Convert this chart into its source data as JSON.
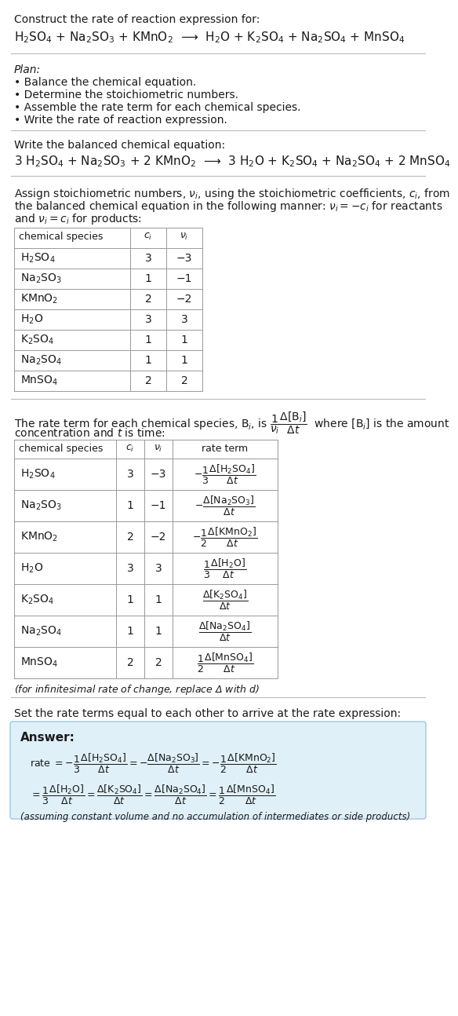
{
  "bg_color": "#ffffff",
  "text_color": "#1a1a1a",
  "title_line1": "Construct the rate of reaction expression for:",
  "reaction_unbalanced": "H$_2$SO$_4$ + Na$_2$SO$_3$ + KMnO$_2$  ⟶  H$_2$O + K$_2$SO$_4$ + Na$_2$SO$_4$ + MnSO$_4$",
  "plan_header": "Plan:",
  "plan_items": [
    "• Balance the chemical equation.",
    "• Determine the stoichiometric numbers.",
    "• Assemble the rate term for each chemical species.",
    "• Write the rate of reaction expression."
  ],
  "balanced_header": "Write the balanced chemical equation:",
  "reaction_balanced": "3 H$_2$SO$_4$ + Na$_2$SO$_3$ + 2 KMnO$_2$  ⟶  3 H$_2$O + K$_2$SO$_4$ + Na$_2$SO$_4$ + 2 MnSO$_4$",
  "stoich_intro_lines": [
    "Assign stoichiometric numbers, $\\nu_i$, using the stoichiometric coefficients, $c_i$, from",
    "the balanced chemical equation in the following manner: $\\nu_i = -c_i$ for reactants",
    "and $\\nu_i = c_i$ for products:"
  ],
  "table1_headers": [
    "chemical species",
    "$c_i$",
    "$\\nu_i$"
  ],
  "table1_data": [
    [
      "H$_2$SO$_4$",
      "3",
      "−3"
    ],
    [
      "Na$_2$SO$_3$",
      "1",
      "−1"
    ],
    [
      "KMnO$_2$",
      "2",
      "−2"
    ],
    [
      "H$_2$O",
      "3",
      "3"
    ],
    [
      "K$_2$SO$_4$",
      "1",
      "1"
    ],
    [
      "Na$_2$SO$_4$",
      "1",
      "1"
    ],
    [
      "MnSO$_4$",
      "2",
      "2"
    ]
  ],
  "rate_intro_line1": "The rate term for each chemical species, B$_i$, is $\\dfrac{1}{\\nu_i}\\dfrac{\\Delta[\\mathrm{B}_i]}{\\Delta t}$  where [B$_i$] is the amount",
  "rate_intro_line2": "concentration and $t$ is time:",
  "table2_headers": [
    "chemical species",
    "$c_i$",
    "$\\nu_i$",
    "rate term"
  ],
  "table2_data": [
    [
      "H$_2$SO$_4$",
      "3",
      "−3",
      "$-\\dfrac{1}{3}\\dfrac{\\Delta[\\mathrm{H_2SO_4}]}{\\Delta t}$"
    ],
    [
      "Na$_2$SO$_3$",
      "1",
      "−1",
      "$-\\dfrac{\\Delta[\\mathrm{Na_2SO_3}]}{\\Delta t}$"
    ],
    [
      "KMnO$_2$",
      "2",
      "−2",
      "$-\\dfrac{1}{2}\\dfrac{\\Delta[\\mathrm{KMnO_2}]}{\\Delta t}$"
    ],
    [
      "H$_2$O",
      "3",
      "3",
      "$\\dfrac{1}{3}\\dfrac{\\Delta[\\mathrm{H_2O}]}{\\Delta t}$"
    ],
    [
      "K$_2$SO$_4$",
      "1",
      "1",
      "$\\dfrac{\\Delta[\\mathrm{K_2SO_4}]}{\\Delta t}$"
    ],
    [
      "Na$_2$SO$_4$",
      "1",
      "1",
      "$\\dfrac{\\Delta[\\mathrm{Na_2SO_4}]}{\\Delta t}$"
    ],
    [
      "MnSO$_4$",
      "2",
      "2",
      "$\\dfrac{1}{2}\\dfrac{\\Delta[\\mathrm{MnSO_4}]}{\\Delta t}$"
    ]
  ],
  "infinitesimal_note": "(for infinitesimal rate of change, replace Δ with $d$)",
  "set_equal_text": "Set the rate terms equal to each other to arrive at the rate expression:",
  "answer_label": "Answer:",
  "answer_box_color": "#dff0f8",
  "answer_box_edge": "#a0c8e0",
  "rate_line1": "rate $= -\\dfrac{1}{3}\\dfrac{\\Delta[\\mathrm{H_2SO_4}]}{\\Delta t} = -\\dfrac{\\Delta[\\mathrm{Na_2SO_3}]}{\\Delta t} = -\\dfrac{1}{2}\\dfrac{\\Delta[\\mathrm{KMnO_2}]}{\\Delta t}$",
  "rate_line2": "$= \\dfrac{1}{3}\\dfrac{\\Delta[\\mathrm{H_2O}]}{\\Delta t} = \\dfrac{\\Delta[\\mathrm{K_2SO_4}]}{\\Delta t} = \\dfrac{\\Delta[\\mathrm{Na_2SO_4}]}{\\Delta t} = \\dfrac{1}{2}\\dfrac{\\Delta[\\mathrm{MnSO_4}]}{\\Delta t}$",
  "assuming_note": "(assuming constant volume and no accumulation of intermediates or side products)"
}
